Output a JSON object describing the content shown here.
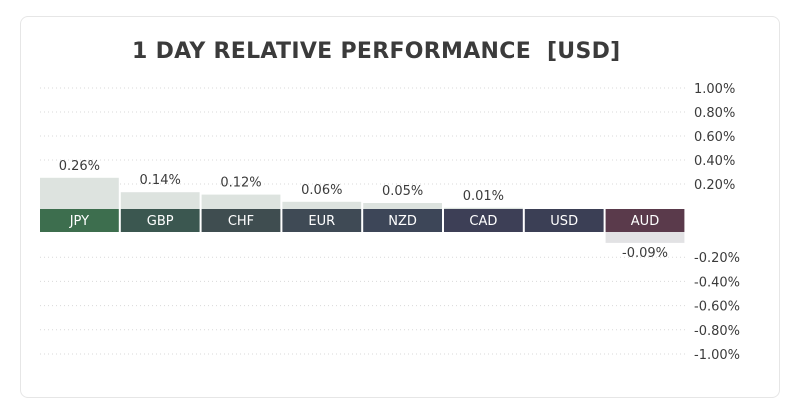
{
  "chart_data": {
    "type": "bar",
    "title": "1 DAY RELATIVE PERFORMANCE  [USD]",
    "categories": [
      "JPY",
      "GBP",
      "CHF",
      "EUR",
      "NZD",
      "CAD",
      "USD",
      "AUD"
    ],
    "values": [
      0.26,
      0.14,
      0.12,
      0.06,
      0.05,
      0.01,
      0.0,
      -0.09
    ],
    "value_labels": [
      "0.26%",
      "0.14%",
      "0.12%",
      "0.06%",
      "0.05%",
      "0.01%",
      "",
      "-0.09%"
    ],
    "category_colors": [
      "#3d6e4e",
      "#3b5750",
      "#3f4d50",
      "#3f4a55",
      "#3d4658",
      "#3d3f56",
      "#3b3f55",
      "#5a3a4b"
    ],
    "positive_bar_color": "#dde3df",
    "negative_bar_color": "#e2e2e4",
    "ylim": [
      -1.0,
      1.0
    ],
    "y_ticks_positive": [
      {
        "value": 1.0,
        "label": "1.00%"
      },
      {
        "value": 0.8,
        "label": "0.80%"
      },
      {
        "value": 0.6,
        "label": "0.60%"
      },
      {
        "value": 0.4,
        "label": "0.40%"
      },
      {
        "value": 0.2,
        "label": "0.20%"
      }
    ],
    "y_ticks_negative": [
      {
        "value": -0.2,
        "label": "-0.20%"
      },
      {
        "value": -0.4,
        "label": "-0.40%"
      },
      {
        "value": -0.6,
        "label": "-0.60%"
      },
      {
        "value": -0.8,
        "label": "-0.80%"
      },
      {
        "value": -1.0,
        "label": "-1.00%"
      }
    ],
    "grid": true,
    "axis_position": "right"
  }
}
